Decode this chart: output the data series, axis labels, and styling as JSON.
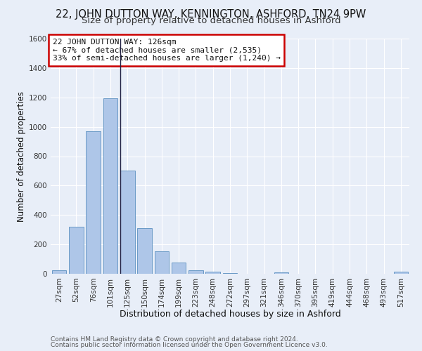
{
  "title1": "22, JOHN DUTTON WAY, KENNINGTON, ASHFORD, TN24 9PW",
  "title2": "Size of property relative to detached houses in Ashford",
  "xlabel": "Distribution of detached houses by size in Ashford",
  "ylabel": "Number of detached properties",
  "footnote1": "Contains HM Land Registry data © Crown copyright and database right 2024.",
  "footnote2": "Contains public sector information licensed under the Open Government Licence v3.0.",
  "bar_labels": [
    "27sqm",
    "52sqm",
    "76sqm",
    "101sqm",
    "125sqm",
    "150sqm",
    "174sqm",
    "199sqm",
    "223sqm",
    "248sqm",
    "272sqm",
    "297sqm",
    "321sqm",
    "346sqm",
    "370sqm",
    "395sqm",
    "419sqm",
    "444sqm",
    "468sqm",
    "493sqm",
    "517sqm"
  ],
  "bar_values": [
    25,
    320,
    970,
    1195,
    700,
    310,
    155,
    75,
    25,
    15,
    5,
    0,
    0,
    10,
    0,
    0,
    0,
    0,
    0,
    0,
    15
  ],
  "bar_color": "#aec6e8",
  "bar_edge_color": "#5a8fc0",
  "property_line_bar_index": 4,
  "annotation_line1": "22 JOHN DUTTON WAY: 126sqm",
  "annotation_line2": "← 67% of detached houses are smaller (2,535)",
  "annotation_line3": "33% of semi-detached houses are larger (1,240) →",
  "box_edge_color": "#cc0000",
  "ylim": [
    0,
    1600
  ],
  "yticks": [
    0,
    200,
    400,
    600,
    800,
    1000,
    1200,
    1400,
    1600
  ],
  "background_color": "#e8eef8",
  "grid_color": "#ffffff",
  "title1_fontsize": 10.5,
  "title2_fontsize": 9.5,
  "xlabel_fontsize": 9,
  "ylabel_fontsize": 8.5,
  "tick_fontsize": 7.5,
  "annotation_fontsize": 8,
  "footnote_fontsize": 6.5
}
